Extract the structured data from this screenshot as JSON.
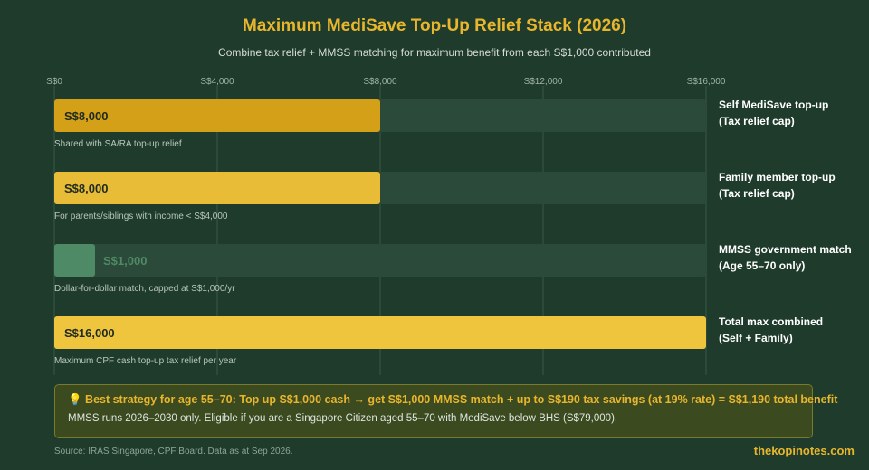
{
  "header": {
    "title": "Maximum MediSave Top-Up Relief Stack (2026)",
    "subtitle": "Combine tax relief + MMSS matching for maximum benefit from each S$1,000 contributed"
  },
  "chart_data": {
    "type": "bar",
    "orientation": "horizontal",
    "xlim": [
      0,
      16000
    ],
    "grid": true,
    "x_ticks": [
      0,
      4000,
      8000,
      12000,
      16000
    ],
    "x_tick_labels": [
      "S$0",
      "S$4,000",
      "S$8,000",
      "S$12,000",
      "S$16,000"
    ],
    "categories": [
      "Self MediSave top-up (Tax relief cap)",
      "Family member top-up (Tax relief cap)",
      "MMSS government match (Age 55–70 only)",
      "Total max combined (Self + Family)"
    ],
    "values": [
      8000,
      8000,
      1000,
      16000
    ],
    "bars": [
      {
        "label_line1": "Self MediSave top-up",
        "label_line2": "(Tax relief cap)",
        "value": 8000,
        "value_label": "S$8,000",
        "note": "Shared with SA/RA top-up relief",
        "color": "#d4a017",
        "value_color": "#1f2a1f"
      },
      {
        "label_line1": "Family member top-up",
        "label_line2": "(Tax relief cap)",
        "value": 8000,
        "value_label": "S$8,000",
        "note": "For parents/siblings with income < S$4,000",
        "color": "#e8bc36",
        "value_color": "#1f2a1f"
      },
      {
        "label_line1": "MMSS government match",
        "label_line2": "(Age 55–70 only)",
        "value": 1000,
        "value_label": "S$1,000",
        "note": "Dollar-for-dollar match, capped at S$1,000/yr",
        "color": "#4e8a65",
        "value_color": "#4e8a65"
      },
      {
        "label_line1": "Total max combined",
        "label_line2": "(Self + Family)",
        "value": 16000,
        "value_label": "S$16,000",
        "note": "Maximum CPF cash top-up tax relief per year",
        "color": "#efc53e",
        "value_color": "#1f2a1f"
      }
    ],
    "colors": {
      "track": "#2c4a3a",
      "grid": "#3b5848",
      "tick_text": "#9fb3a5",
      "label_text": "#ffffff",
      "note_text": "#b9c6bc"
    }
  },
  "callout": {
    "icon": "lightbulb-icon",
    "strong": "💡 Best strategy for age 55–70: Top up S$1,000 cash → get S$1,000 MMSS match + up to S$190 tax savings (at 19% rate) = S$1,190 total benefit",
    "note": "MMSS runs 2026–2030 only. Eligible if you are a Singapore Citizen aged 55–70 with MediSave below BHS (S$79,000)."
  },
  "footer": {
    "source": "Source: IRAS Singapore, CPF Board. Data as at Sep 2026.",
    "brand": "thekopinotes.com"
  }
}
